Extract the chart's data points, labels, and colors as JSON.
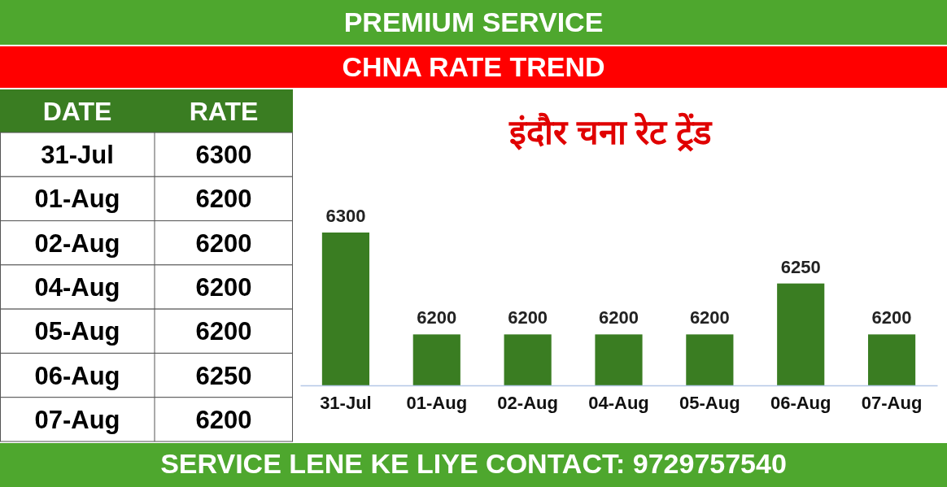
{
  "chart_data": [
    {
      "type": "other",
      "xlabel": "DATE",
      "ylabel": "RATE",
      "categories": [
        "31-Jul",
        "01-Aug",
        "02-Aug",
        "04-Aug",
        "05-Aug",
        "06-Aug",
        "07-Aug"
      ],
      "values": [
        6300,
        6200,
        6200,
        6200,
        6200,
        6250,
        6200
      ],
      "data_labels": true
    },
    {
      "type": "bar",
      "title": "इंदौर चना रेट ट्रेंड",
      "subtitle": "CHNA RATE TREND",
      "annotations": [
        "PREMIUM SERVICE",
        "SERVICE LENE KE LIYE CONTACT: 9729757540"
      ],
      "categories": [
        "31-Jul",
        "01-Aug",
        "02-Aug",
        "04-Aug",
        "05-Aug",
        "06-Aug",
        "07-Aug"
      ],
      "values": [
        6300,
        6200,
        6200,
        6200,
        6200,
        6250,
        6200
      ],
      "color": "#3a7d22",
      "ylim": [
        6150,
        6300
      ],
      "tick_labels": "x",
      "data_labels": true
    }
  ]
}
